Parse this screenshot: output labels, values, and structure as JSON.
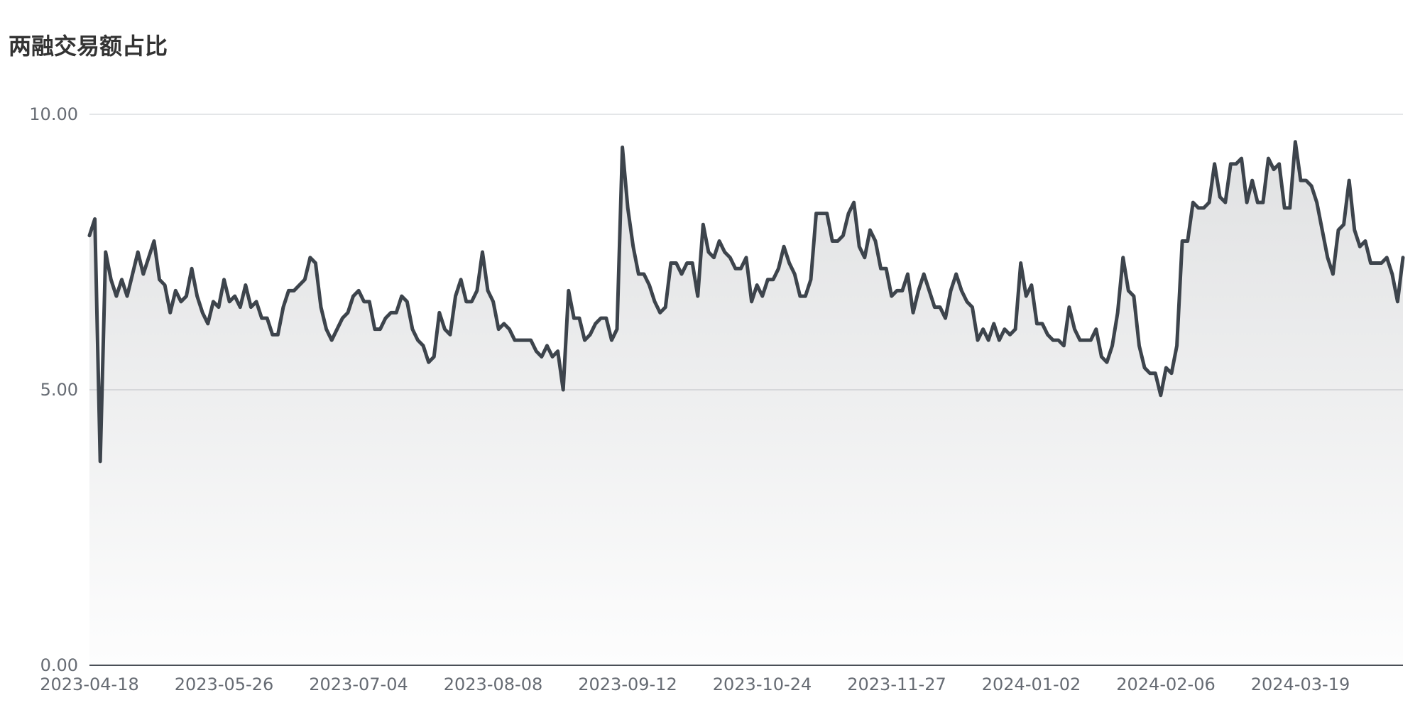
{
  "chart_data": {
    "type": "area",
    "title": "两融交易额占比",
    "xlabel": "",
    "ylabel": "",
    "ylim": [
      0,
      10
    ],
    "y_ticks": [
      "0.00",
      "5.00",
      "10.00"
    ],
    "x_ticks": [
      "2023-04-18",
      "2023-05-26",
      "2023-07-04",
      "2023-08-08",
      "2023-09-12",
      "2023-10-24",
      "2023-11-27",
      "2024-01-02",
      "2024-02-06",
      "2024-03-19"
    ],
    "grid": true,
    "legend": "none",
    "line_color": "#3d444c",
    "fill_color": "#3d444c",
    "series": [
      {
        "values": [
          7.8,
          8.1,
          3.7,
          7.5,
          7.0,
          6.7,
          7.0,
          6.7,
          7.1,
          7.5,
          7.1,
          7.4,
          7.7,
          7.0,
          6.9,
          6.4,
          6.8,
          6.6,
          6.7,
          7.2,
          6.7,
          6.4,
          6.2,
          6.6,
          6.5,
          7.0,
          6.6,
          6.7,
          6.5,
          6.9,
          6.5,
          6.6,
          6.3,
          6.3,
          6.0,
          6.0,
          6.5,
          6.8,
          6.8,
          6.9,
          7.0,
          7.4,
          7.3,
          6.5,
          6.1,
          5.9,
          6.1,
          6.3,
          6.4,
          6.7,
          6.8,
          6.6,
          6.6,
          6.1,
          6.1,
          6.3,
          6.4,
          6.4,
          6.7,
          6.6,
          6.1,
          5.9,
          5.8,
          5.5,
          5.6,
          6.4,
          6.1,
          6.0,
          6.7,
          7.0,
          6.6,
          6.6,
          6.8,
          7.5,
          6.8,
          6.6,
          6.1,
          6.2,
          6.1,
          5.9,
          5.9,
          5.9,
          5.9,
          5.7,
          5.6,
          5.8,
          5.6,
          5.7,
          5.0,
          6.8,
          6.3,
          6.3,
          5.9,
          6.0,
          6.2,
          6.3,
          6.3,
          5.9,
          6.1,
          9.4,
          8.3,
          7.6,
          7.1,
          7.1,
          6.9,
          6.6,
          6.4,
          6.5,
          7.3,
          7.3,
          7.1,
          7.3,
          7.3,
          6.7,
          8.0,
          7.5,
          7.4,
          7.7,
          7.5,
          7.4,
          7.2,
          7.2,
          7.4,
          6.6,
          6.9,
          6.7,
          7.0,
          7.0,
          7.2,
          7.6,
          7.3,
          7.1,
          6.7,
          6.7,
          7.0,
          8.2,
          8.2,
          8.2,
          7.7,
          7.7,
          7.8,
          8.2,
          8.4,
          7.6,
          7.4,
          7.9,
          7.7,
          7.2,
          7.2,
          6.7,
          6.8,
          6.8,
          7.1,
          6.4,
          6.8,
          7.1,
          6.8,
          6.5,
          6.5,
          6.3,
          6.8,
          7.1,
          6.8,
          6.6,
          6.5,
          5.9,
          6.1,
          5.9,
          6.2,
          5.9,
          6.1,
          6.0,
          6.1,
          7.3,
          6.7,
          6.9,
          6.2,
          6.2,
          6.0,
          5.9,
          5.9,
          5.8,
          6.5,
          6.1,
          5.9,
          5.9,
          5.9,
          6.1,
          5.6,
          5.5,
          5.8,
          6.4,
          7.4,
          6.8,
          6.7,
          5.8,
          5.4,
          5.3,
          5.3,
          4.9,
          5.4,
          5.3,
          5.8,
          7.7,
          7.7,
          8.4,
          8.3,
          8.3,
          8.4,
          9.1,
          8.5,
          8.4,
          9.1,
          9.1,
          9.2,
          8.4,
          8.8,
          8.4,
          8.4,
          9.2,
          9.0,
          9.1,
          8.3,
          8.3,
          9.5,
          8.8,
          8.8,
          8.7,
          8.4,
          7.9,
          7.4,
          7.1,
          7.9,
          8.0,
          8.8,
          7.9,
          7.6,
          7.7,
          7.3,
          7.3,
          7.3,
          7.4,
          7.1,
          6.6,
          7.4
        ]
      }
    ]
  }
}
